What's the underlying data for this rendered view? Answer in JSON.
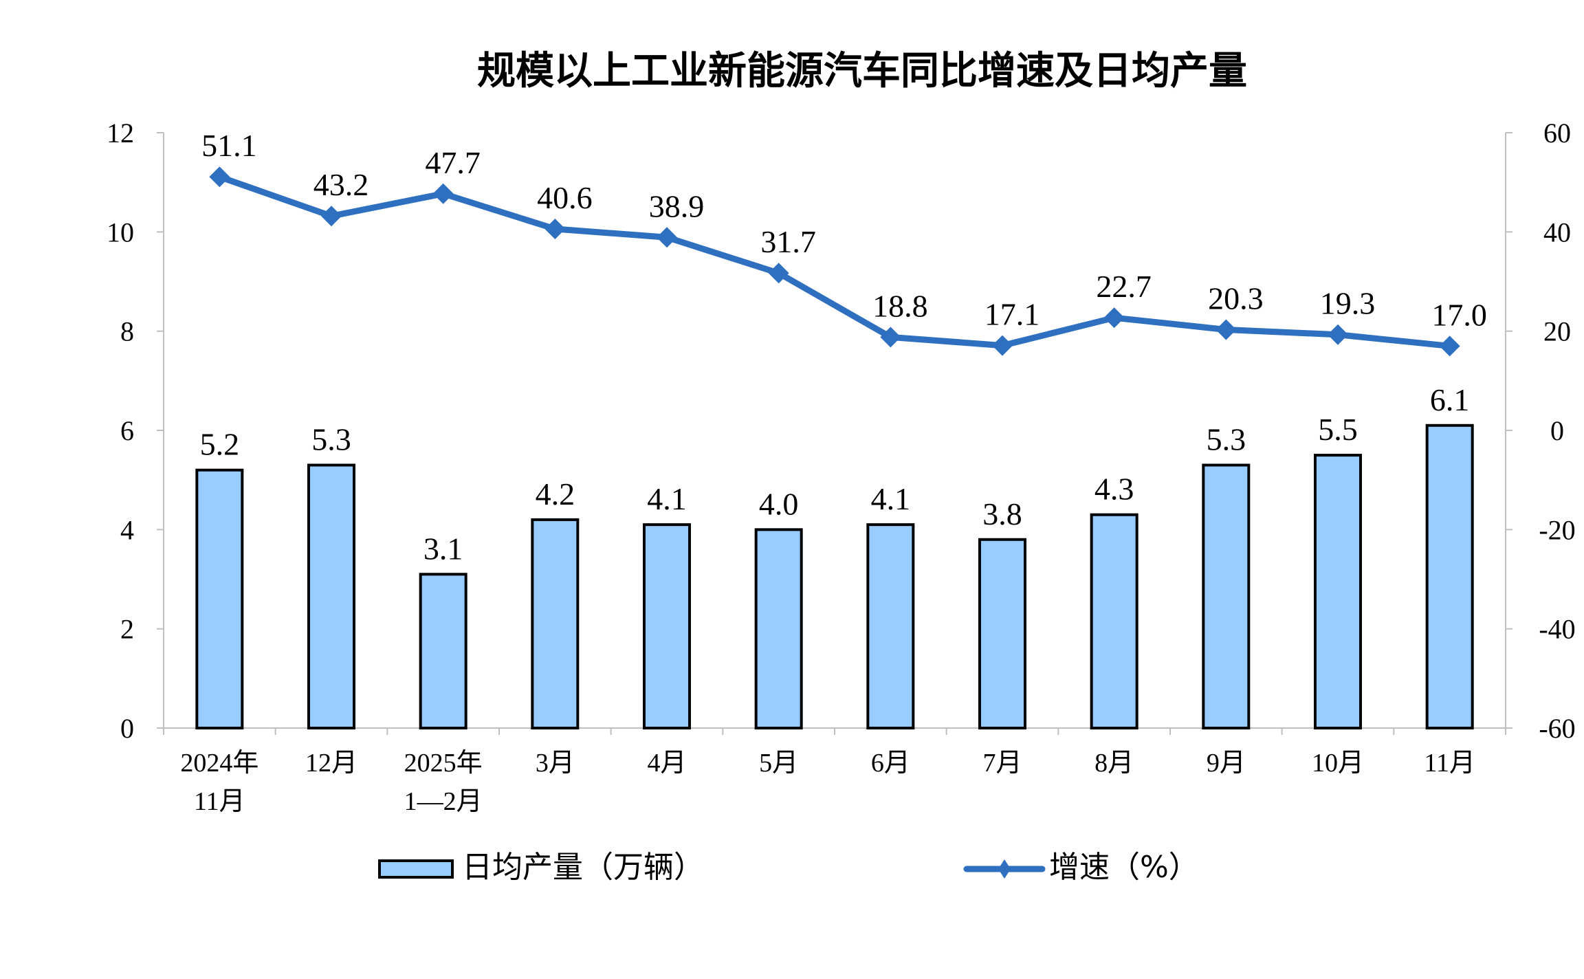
{
  "chart_data": {
    "type": "bar+line",
    "title": "规模以上工业新能源汽车同比增速及日均产量",
    "categories": [
      [
        "2024年",
        "11月"
      ],
      [
        "12月"
      ],
      [
        "2025年",
        "1—2月"
      ],
      [
        "3月"
      ],
      [
        "4月"
      ],
      [
        "5月"
      ],
      [
        "6月"
      ],
      [
        "7月"
      ],
      [
        "8月"
      ],
      [
        "9月"
      ],
      [
        "10月"
      ],
      [
        "11月"
      ]
    ],
    "series": [
      {
        "name": "日均产量（万辆）",
        "type": "bar",
        "axis": "left",
        "color": "#99CCFF",
        "values": [
          5.2,
          5.3,
          3.1,
          4.2,
          4.1,
          4.0,
          4.1,
          3.8,
          4.3,
          5.3,
          5.5,
          6.1
        ],
        "labels": [
          "5.2",
          "5.3",
          "3.1",
          "4.2",
          "4.1",
          "4.0",
          "4.1",
          "3.8",
          "4.3",
          "5.3",
          "5.5",
          "6.1"
        ]
      },
      {
        "name": "增速（%）",
        "type": "line",
        "axis": "right",
        "color": "#2E6FBF",
        "marker": "diamond",
        "values": [
          51.1,
          43.2,
          47.7,
          40.6,
          38.9,
          31.7,
          18.8,
          17.1,
          22.7,
          20.3,
          19.3,
          17.0
        ],
        "labels": [
          "51.1",
          "43.2",
          "47.7",
          "40.6",
          "38.9",
          "31.7",
          "18.8",
          "17.1",
          "22.7",
          "20.3",
          "19.3",
          "17.0"
        ]
      }
    ],
    "y_left": {
      "range": [
        0,
        12
      ],
      "ticks": [
        "0",
        "2",
        "4",
        "6",
        "8",
        "10",
        "12"
      ]
    },
    "y_right": {
      "range": [
        -60,
        60
      ],
      "ticks": [
        "-60",
        "-40",
        "-20",
        "0",
        "20",
        "40",
        "60"
      ]
    },
    "grid": false,
    "legend": "bottom"
  }
}
